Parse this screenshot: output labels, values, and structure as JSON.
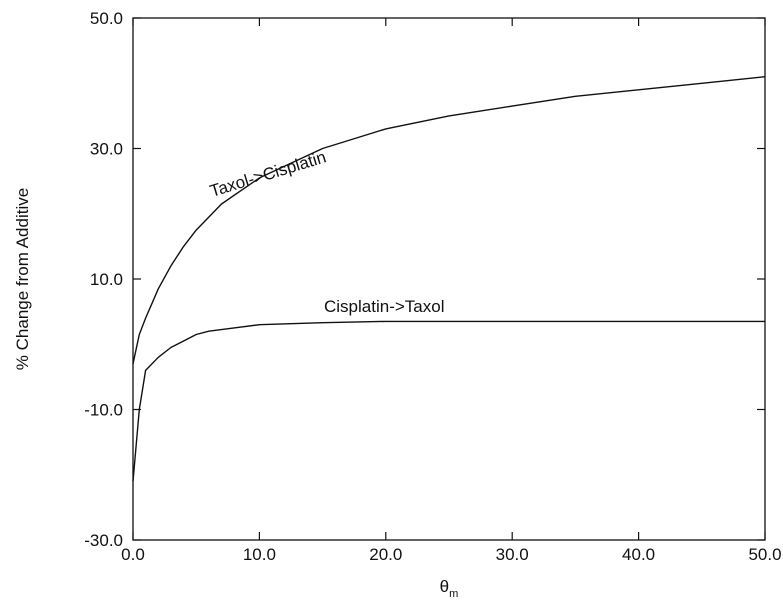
{
  "chart_data": {
    "type": "line",
    "xlabel": "θ",
    "xlabel_subscript": "m",
    "ylabel": "% Change from Additive",
    "xlim": [
      0,
      50
    ],
    "ylim": [
      -30,
      50
    ],
    "x_ticks": [
      "0.0",
      "10.0",
      "20.0",
      "30.0",
      "40.0",
      "50.0"
    ],
    "y_ticks": [
      "-30.0",
      "-10.0",
      "10.0",
      "30.0",
      "50.0"
    ],
    "grid": false,
    "legend": "none",
    "series": [
      {
        "name": "Taxol->Cisplatin",
        "x": [
          0,
          0.5,
          1,
          2,
          3,
          4,
          5,
          7,
          10,
          15,
          20,
          25,
          30,
          35,
          40,
          45,
          50
        ],
        "y": [
          -3,
          1.5,
          4,
          8.5,
          12,
          15,
          17.5,
          21.5,
          25.5,
          30,
          33,
          35,
          36.5,
          38,
          39,
          40,
          41
        ]
      },
      {
        "name": "Cisplatin->Taxol",
        "x": [
          0,
          0.5,
          1,
          2,
          3,
          4,
          5,
          6,
          8,
          10,
          15,
          20,
          30,
          40,
          50
        ],
        "y": [
          -21,
          -10,
          -4,
          -2,
          -0.5,
          0.5,
          1.5,
          2,
          2.5,
          3,
          3.3,
          3.5,
          3.5,
          3.5,
          3.5
        ]
      }
    ]
  }
}
